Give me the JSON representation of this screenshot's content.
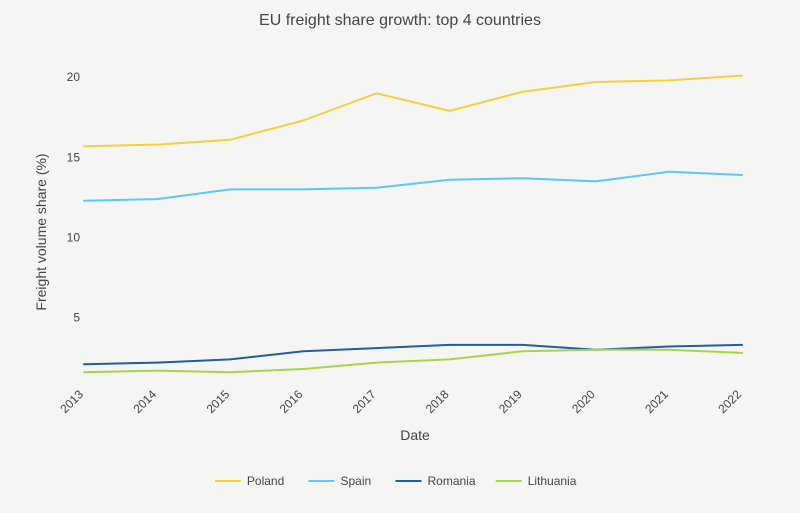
{
  "chart_data": {
    "type": "line",
    "title": "EU freight share growth: top 4 countries",
    "xlabel": "Date",
    "ylabel": "Freight volume share (%)",
    "x": [
      "2013",
      "2014",
      "2015",
      "2016",
      "2017",
      "2018",
      "2019",
      "2020",
      "2021",
      "2022"
    ],
    "yticks": [
      5,
      10,
      15,
      20
    ],
    "ylim": [
      0.8,
      21.2
    ],
    "grid": false,
    "legend": "bottom-center",
    "series": [
      {
        "name": "Poland",
        "color": "#f4d03f",
        "values": [
          15.7,
          15.8,
          16.1,
          17.3,
          19.0,
          17.9,
          19.1,
          19.7,
          19.8,
          20.1
        ]
      },
      {
        "name": "Spain",
        "color": "#5bc8f5",
        "values": [
          12.3,
          12.4,
          13.0,
          13.0,
          13.1,
          13.6,
          13.7,
          13.5,
          14.1,
          13.9
        ]
      },
      {
        "name": "Romania",
        "color": "#1f5fa0",
        "values": [
          2.1,
          2.2,
          2.4,
          2.9,
          3.1,
          3.3,
          3.3,
          3.0,
          3.2,
          3.3
        ]
      },
      {
        "name": "Lithuania",
        "color": "#a8d44c",
        "values": [
          1.6,
          1.7,
          1.6,
          1.8,
          2.2,
          2.4,
          2.9,
          3.0,
          3.0,
          2.8
        ]
      }
    ]
  }
}
